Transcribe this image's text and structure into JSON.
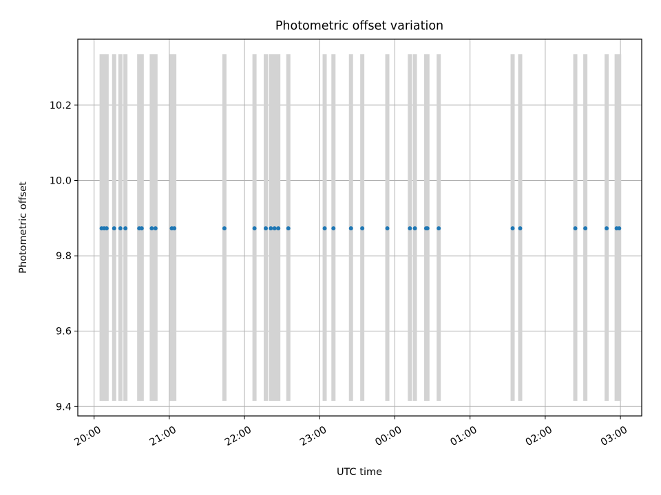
{
  "chart_data": {
    "type": "scatter",
    "title": "Photometric offset variation",
    "xlabel": "UTC time",
    "ylabel": "Photometric offset",
    "x_axis_type": "time",
    "xlim": [
      "19:47",
      "03:17"
    ],
    "ylim": [
      9.375,
      10.375
    ],
    "x_ticks": [
      "20:00",
      "21:00",
      "22:00",
      "23:00",
      "00:00",
      "01:00",
      "02:00",
      "03:00"
    ],
    "y_ticks": [
      "9.4",
      "9.6",
      "9.8",
      "10.0",
      "10.2"
    ],
    "grid": true,
    "legend": "none",
    "series": [
      {
        "marker_color": "#1f77b4",
        "x": [
          "20:06",
          "20:08",
          "20:10",
          "20:16",
          "20:21",
          "20:25",
          "20:36",
          "20:38",
          "20:46",
          "20:49",
          "21:02",
          "21:04",
          "21:44",
          "22:08",
          "22:17",
          "22:21",
          "22:24",
          "22:27",
          "22:35",
          "23:04",
          "23:11",
          "23:25",
          "23:34",
          "23:54",
          "00:12",
          "00:16",
          "00:25",
          "00:26",
          "00:35",
          "01:34",
          "01:40",
          "02:24",
          "02:32",
          "02:49",
          "02:57",
          "02:59"
        ],
        "y": [
          9.873,
          9.873,
          9.873,
          9.873,
          9.873,
          9.873,
          9.873,
          9.873,
          9.873,
          9.873,
          9.873,
          9.873,
          9.873,
          9.873,
          9.873,
          9.873,
          9.873,
          9.873,
          9.873,
          9.873,
          9.873,
          9.873,
          9.873,
          9.873,
          9.873,
          9.873,
          9.873,
          9.873,
          9.873,
          9.873,
          9.873,
          9.873,
          9.873,
          9.873,
          9.873,
          9.873
        ]
      }
    ],
    "vertical_bands": {
      "color": "#d3d3d3",
      "y_range": [
        9.415,
        10.335
      ],
      "x": [
        "20:06",
        "20:08",
        "20:10",
        "20:16",
        "20:21",
        "20:25",
        "20:36",
        "20:38",
        "20:46",
        "20:49",
        "21:02",
        "21:04",
        "21:44",
        "22:08",
        "22:17",
        "22:21",
        "22:24",
        "22:27",
        "22:35",
        "23:04",
        "23:11",
        "23:25",
        "23:34",
        "23:54",
        "00:12",
        "00:16",
        "00:25",
        "00:26",
        "00:35",
        "01:34",
        "01:40",
        "02:24",
        "02:32",
        "02:49",
        "02:57",
        "02:59"
      ]
    }
  }
}
